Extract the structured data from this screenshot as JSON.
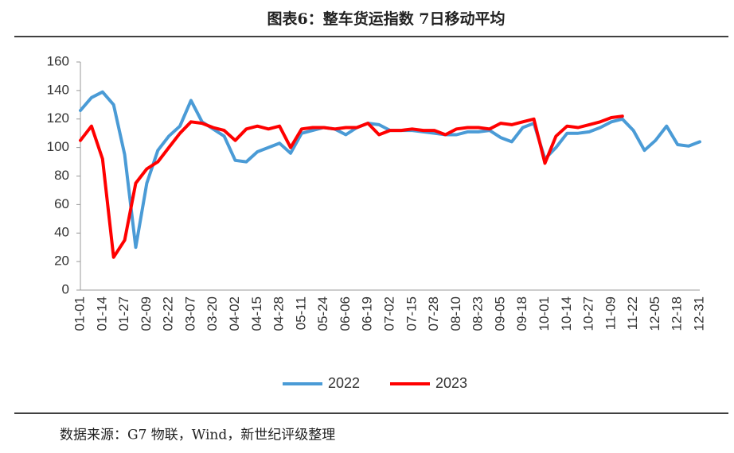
{
  "chart_data": {
    "type": "line",
    "title": "图表6：整车货运指数 7日移动平均",
    "source": "数据来源：G7 物联，Wind，新世纪评级整理",
    "categories": [
      "01-01",
      null,
      "01-14",
      null,
      "01-27",
      null,
      "02-09",
      null,
      "02-22",
      null,
      "03-07",
      null,
      "03-20",
      null,
      "04-02",
      null,
      "04-15",
      null,
      "04-28",
      null,
      "05-11",
      null,
      "05-24",
      null,
      "06-06",
      null,
      "06-19",
      null,
      "07-02",
      null,
      "07-15",
      null,
      "07-28",
      null,
      "08-10",
      null,
      "08-23",
      null,
      "09-05",
      null,
      "09-18",
      null,
      "10-01",
      null,
      "10-14",
      null,
      "10-27",
      null,
      "11-09",
      null,
      "11-22",
      null,
      "12-05",
      null,
      "12-18",
      null,
      "12-31"
    ],
    "series": [
      {
        "name": "2022",
        "color": "#4a9bd6",
        "values": [
          126,
          135,
          139,
          130,
          95,
          30,
          75,
          98,
          108,
          115,
          133,
          118,
          113,
          108,
          91,
          90,
          97,
          100,
          103,
          96,
          110,
          112,
          114,
          113,
          109,
          114,
          117,
          116,
          112,
          112,
          112,
          111,
          110,
          109,
          109,
          111,
          111,
          112,
          107,
          104,
          114,
          117,
          92,
          100,
          110,
          110,
          111,
          114,
          118,
          120,
          112,
          98,
          105,
          115,
          102,
          101,
          104
        ]
      },
      {
        "name": "2023",
        "color": "#ff0000",
        "values": [
          105,
          115,
          92,
          23,
          35,
          75,
          85,
          90,
          100,
          110,
          118,
          117,
          114,
          112,
          105,
          113,
          115,
          113,
          115,
          100,
          113,
          114,
          114,
          113,
          114,
          114,
          117,
          109,
          112,
          112,
          113,
          112,
          112,
          109,
          113,
          114,
          114,
          113,
          117,
          116,
          118,
          120,
          89,
          108,
          115,
          114,
          116,
          118,
          121,
          122,
          null,
          null,
          null,
          null,
          null,
          null,
          null
        ]
      }
    ],
    "ylim": [
      0,
      160
    ],
    "yticks": [
      0,
      20,
      40,
      60,
      80,
      100,
      120,
      140,
      160
    ],
    "legend": "bottom"
  }
}
